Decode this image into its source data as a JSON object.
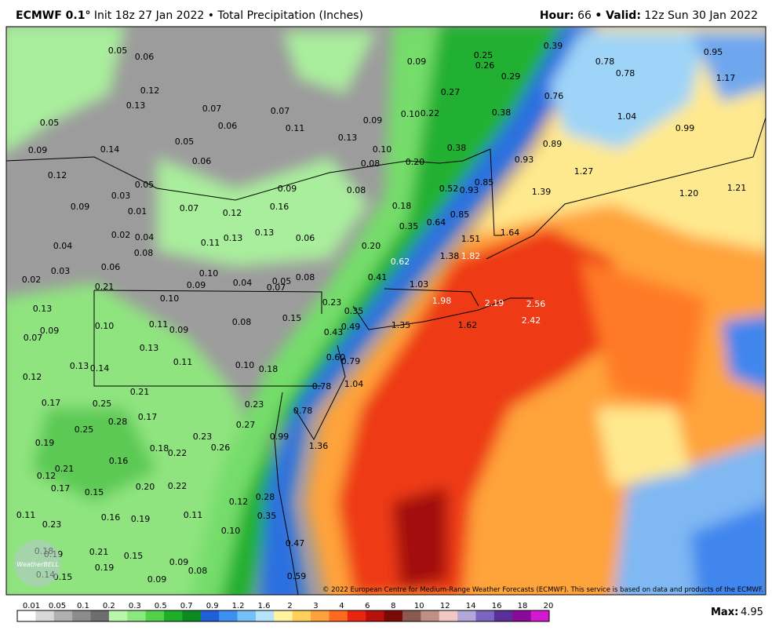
{
  "header": {
    "model": "ECMWF 0.1°",
    "init": "Init 18z 27 Jan 2022 • Total Precipitation (Inches)",
    "hour_label": "Hour:",
    "hour": "66",
    "valid_label": "• Valid:",
    "valid": "12z Sun 30 Jan 2022"
  },
  "map": {
    "labels": [
      "0.05",
      "0.06",
      "0.12",
      "0.13",
      "0.07",
      "0.07",
      "0.11",
      "0.06",
      "0.05",
      "0.06",
      "0.05",
      "0.09",
      "0.14",
      "0.12",
      "0.05",
      "0.03",
      "0.09",
      "0.01",
      "0.07",
      "0.12",
      "0.16",
      "0.09",
      "0.08",
      "0.02",
      "0.04",
      "0.04",
      "0.11",
      "0.13",
      "0.13",
      "0.06",
      "0.08",
      "0.06",
      "0.03",
      "0.02",
      "0.10",
      "0.04",
      "0.05",
      "0.07",
      "0.08",
      "0.21",
      "0.09",
      "0.10",
      "0.13",
      "0.07",
      "0.09",
      "0.10",
      "0.11",
      "0.09",
      "0.08",
      "0.15",
      "0.13",
      "0.11",
      "0.10",
      "0.18",
      "0.13",
      "0.14",
      "0.12",
      "0.21",
      "0.17",
      "0.25",
      "0.28",
      "0.17",
      "0.25",
      "0.19",
      "0.23",
      "0.18",
      "0.22",
      "0.26",
      "0.16",
      "0.21",
      "0.12",
      "0.17",
      "0.15",
      "0.20",
      "0.22",
      "0.12",
      "0.11",
      "0.16",
      "0.19",
      "0.11",
      "0.23",
      "0.10",
      "0.18",
      "0.19",
      "0.21",
      "0.15",
      "0.19",
      "0.09",
      "0.08",
      "0.09",
      "0.14",
      "0.15",
      "0.09",
      "0.25",
      "0.26",
      "0.29",
      "0.39",
      "0.78",
      "0.78",
      "0.95",
      "1.17",
      "0.27",
      "0.76",
      "0.10",
      "0.22",
      "0.38",
      "1.04",
      "0.99",
      "0.09",
      "0.13",
      "0.10",
      "0.38",
      "0.89",
      "0.08",
      "0.20",
      "0.93",
      "0.52",
      "0.93",
      "0.85",
      "1.27",
      "1.39",
      "1.20",
      "1.21",
      "0.18",
      "0.85",
      "0.64",
      "0.35",
      "1.51",
      "1.64",
      "0.20",
      "0.62",
      "1.38",
      "1.82",
      "0.41",
      "1.03",
      "1.98",
      "2.19",
      "2.56",
      "0.23",
      "0.35",
      "0.49",
      "0.43",
      "1.35",
      "1.62",
      "2.42",
      "0.60",
      "0.79",
      "0.78",
      "1.04",
      "0.78",
      "0.23",
      "0.27",
      "0.99",
      "1.36",
      "0.28",
      "0.35",
      "0.47",
      "0.59"
    ],
    "credit": "© 2022 European Centre for Medium-Range Weather Forecasts (ECMWF). This service is based on data and products of the ECMWF.",
    "logo": "WeatherBELL"
  },
  "colorbar": {
    "labels": [
      "0.01",
      "0.05",
      "0.1",
      "0.2",
      "0.3",
      "0.5",
      "0.7",
      "0.9",
      "1.2",
      "1.6",
      "2",
      "3",
      "4",
      "6",
      "8",
      "10",
      "12",
      "14",
      "16",
      "18",
      "20"
    ],
    "colors": [
      "#ffffff",
      "#d8d8d8",
      "#b0b0b0",
      "#8c8c8c",
      "#6e6e6e",
      "#b9f7ae",
      "#8be87e",
      "#52d24a",
      "#1fae2a",
      "#0b8a1f",
      "#1f5fd8",
      "#3d8ff0",
      "#74c0f7",
      "#b6e3fb",
      "#fff3a0",
      "#ffd15a",
      "#ffa23a",
      "#ff6a1f",
      "#e8260f",
      "#b8100a",
      "#7a0a08",
      "#8a5a50",
      "#c08f86",
      "#f0c8c4",
      "#b3a6d8",
      "#7a65c0",
      "#5a2f9a",
      "#8a0a9a",
      "#d41ad0"
    ]
  },
  "footer": {
    "max_label": "Max:",
    "max": "4.95"
  }
}
